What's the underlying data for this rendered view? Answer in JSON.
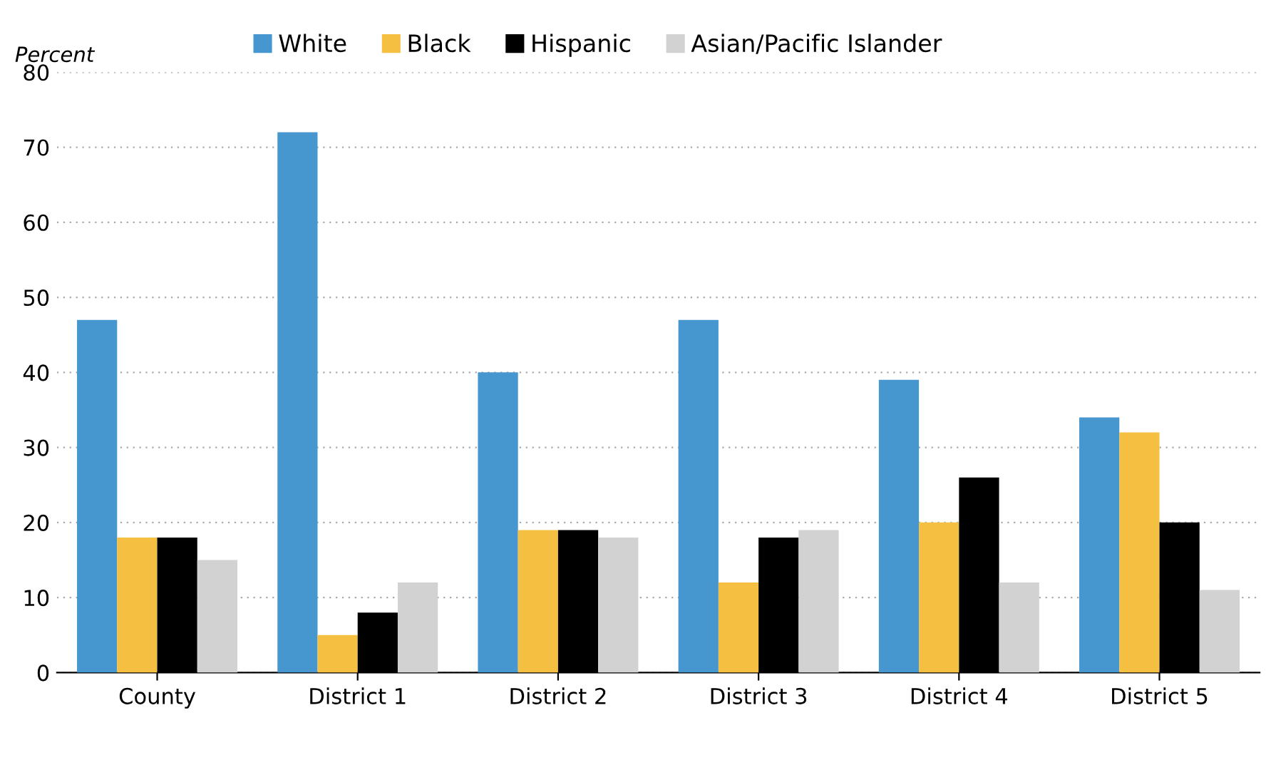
{
  "chart_data": {
    "type": "bar",
    "ylabel": "Percent",
    "categories": [
      "County",
      "District 1",
      "District 2",
      "District 3",
      "District 4",
      "District 5"
    ],
    "series": [
      {
        "name": "White",
        "color": "#4696d0",
        "values": [
          47,
          72,
          40,
          47,
          39,
          34
        ]
      },
      {
        "name": "Black",
        "color": "#f5bf42",
        "values": [
          18,
          5,
          19,
          12,
          20,
          32
        ]
      },
      {
        "name": "Hispanic",
        "color": "#000000",
        "values": [
          18,
          8,
          19,
          18,
          26,
          20
        ]
      },
      {
        "name": "Asian/Pacific Islander",
        "color": "#d2d2d2",
        "values": [
          15,
          12,
          18,
          19,
          12,
          11
        ]
      }
    ],
    "ylim": [
      0,
      80
    ],
    "yticks": [
      0,
      10,
      20,
      30,
      40,
      50,
      60,
      70,
      80
    ],
    "grid": "y",
    "legend": "top"
  }
}
